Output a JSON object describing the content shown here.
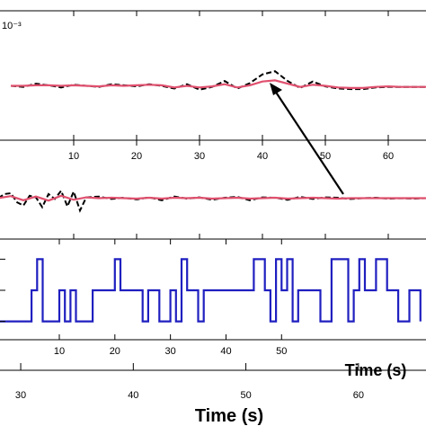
{
  "chart_data": [
    {
      "type": "line",
      "title": "",
      "exponent_label": "10⁻³",
      "xlim": [
        -2,
        66
      ],
      "ylim": [
        -1,
        1
      ],
      "series": [
        {
          "style": "dashed",
          "color": "#000000",
          "x": [
            0,
            2,
            4,
            6,
            8,
            10,
            12,
            14,
            16,
            18,
            20,
            22,
            24,
            26,
            28,
            30,
            32,
            34,
            36,
            38,
            40,
            42,
            44,
            46,
            48,
            50,
            52,
            54,
            56,
            58,
            60,
            62,
            64,
            66
          ],
          "y": [
            0.0,
            -0.02,
            0.04,
            0.01,
            -0.03,
            0.02,
            0.0,
            -0.02,
            0.03,
            0.01,
            -0.01,
            0.03,
            0.0,
            -0.05,
            0.03,
            -0.07,
            -0.02,
            0.09,
            -0.05,
            0.05,
            0.21,
            0.27,
            0.09,
            -0.04,
            0.08,
            -0.01,
            -0.05,
            -0.06,
            -0.06,
            -0.03,
            -0.02,
            -0.02,
            -0.02,
            -0.02
          ]
        },
        {
          "style": "solid",
          "color": "#e0506e",
          "x": [
            0,
            2,
            4,
            6,
            8,
            10,
            12,
            14,
            16,
            18,
            20,
            22,
            24,
            26,
            28,
            30,
            32,
            34,
            36,
            38,
            40,
            42,
            44,
            46,
            48,
            50,
            52,
            54,
            56,
            58,
            60,
            62,
            64,
            66
          ],
          "y": [
            0.0,
            0.0,
            0.01,
            0.01,
            0.0,
            0.01,
            0.0,
            -0.01,
            0.01,
            0.0,
            0.01,
            0.02,
            0.01,
            -0.03,
            0.0,
            -0.03,
            -0.01,
            0.03,
            -0.03,
            0.01,
            0.08,
            0.1,
            0.04,
            -0.02,
            0.02,
            0.0,
            -0.03,
            -0.04,
            -0.04,
            -0.02,
            -0.01,
            -0.02,
            -0.02,
            -0.02
          ]
        }
      ]
    },
    {
      "type": "line",
      "title": "",
      "xlim": [
        -2,
        66
      ],
      "x_ticks": [
        10,
        20,
        30,
        40,
        50,
        60
      ],
      "ylim": [
        -1,
        1
      ],
      "series": [
        {
          "style": "dashed",
          "color": "#000000",
          "x": [
            -2,
            -1,
            0,
            1,
            2,
            3,
            4,
            5,
            6,
            7,
            8,
            9,
            10,
            11,
            12,
            14,
            16,
            18,
            20,
            22,
            24,
            26,
            28,
            30,
            32,
            34,
            36,
            38,
            40,
            42,
            44,
            46,
            48,
            50,
            52,
            54,
            56,
            58,
            60,
            62,
            64,
            66
          ],
          "y": [
            0.0,
            0.1,
            0.12,
            -0.1,
            -0.18,
            0.06,
            0.02,
            -0.22,
            0.1,
            -0.02,
            0.18,
            -0.2,
            0.16,
            -0.3,
            0.02,
            0.04,
            -0.02,
            0.01,
            -0.03,
            0.02,
            -0.05,
            0.04,
            -0.01,
            0.02,
            -0.04,
            0.01,
            0.03,
            -0.05,
            0.02,
            0.01,
            -0.04,
            0.03,
            -0.02,
            0.02,
            0.01,
            -0.02,
            0.0,
            0.01,
            -0.01,
            0.0,
            -0.01,
            0.0
          ]
        },
        {
          "style": "solid",
          "color": "#e0506e",
          "x": [
            -2,
            0,
            2,
            4,
            6,
            8,
            10,
            12,
            14,
            16,
            18,
            20,
            22,
            24,
            26,
            28,
            30,
            32,
            34,
            36,
            38,
            40,
            42,
            44,
            46,
            48,
            50,
            52,
            54,
            56,
            58,
            60,
            62,
            64,
            66
          ],
          "y": [
            0.0,
            0.05,
            -0.05,
            0.04,
            -0.06,
            0.06,
            -0.04,
            0.02,
            0.0,
            0.01,
            0.0,
            -0.01,
            0.01,
            -0.01,
            0.01,
            0.0,
            0.01,
            -0.01,
            0.0,
            0.01,
            -0.01,
            0.0,
            0.01,
            -0.01,
            0.0,
            0.01,
            0.0,
            -0.01,
            0.0,
            0.0,
            0.0,
            0.0,
            0.0,
            0.0,
            0.0
          ]
        }
      ]
    },
    {
      "type": "line",
      "title": "",
      "xlabel": "Time (s)",
      "xlim": [
        -1,
        76
      ],
      "x_ticks": [
        10,
        20,
        30,
        40,
        50
      ],
      "x_tick_labels": [
        "10",
        "20",
        "30",
        "40",
        "50"
      ],
      "ylim": [
        -1.3,
        1.3
      ],
      "series": [
        {
          "style": "solid",
          "color": "#1f1fc0",
          "x": [
            -1,
            5,
            5,
            6,
            6,
            7,
            7,
            10,
            10,
            11,
            11,
            12,
            12,
            13,
            13,
            16,
            16,
            20,
            20,
            21,
            21,
            25,
            25,
            26,
            26,
            28,
            28,
            30,
            30,
            31,
            31,
            32,
            32,
            33,
            33,
            35,
            35,
            36,
            36,
            45,
            45,
            47,
            47,
            48,
            48,
            49,
            49,
            50,
            50,
            51,
            51,
            52,
            52,
            53,
            53,
            55,
            55,
            57,
            57,
            59,
            59,
            62,
            62,
            63,
            63,
            64,
            64,
            65,
            65,
            67,
            67,
            69,
            69,
            71,
            71,
            73,
            73,
            75,
            75
          ],
          "y": [
            -1,
            -1,
            0,
            0,
            1,
            1,
            -1,
            -1,
            0,
            0,
            -1,
            -1,
            0,
            0,
            -1,
            -1,
            0,
            0,
            1,
            1,
            0,
            0,
            -1,
            -1,
            0,
            0,
            -1,
            -1,
            0,
            0,
            -1,
            -1,
            1,
            1,
            0,
            0,
            -1,
            -1,
            0,
            0,
            1,
            1,
            0,
            0,
            -1,
            -1,
            1,
            1,
            0,
            0,
            1,
            1,
            -1,
            -1,
            0,
            0,
            0,
            0,
            -1,
            -1,
            1,
            1,
            -1,
            -1,
            0,
            0,
            1,
            1,
            0,
            0,
            1,
            1,
            0,
            0,
            -1,
            -1,
            0,
            0,
            -1
          ]
        }
      ]
    },
    {
      "type": "line",
      "title": "",
      "xlabel": "Time (s)",
      "xlim": [
        28,
        66
      ],
      "x_ticks": [
        30,
        40,
        50,
        60
      ],
      "x_tick_labels": [
        "30",
        "40",
        "50",
        "60"
      ],
      "ylim": [
        0,
        1
      ],
      "series": []
    }
  ]
}
